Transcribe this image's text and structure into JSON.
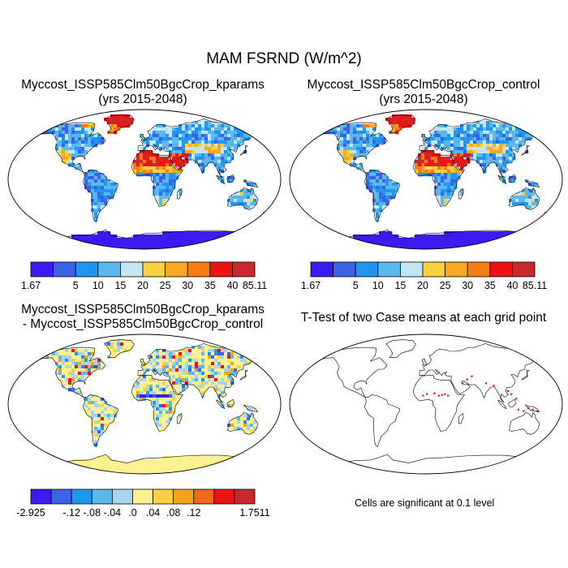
{
  "title": "MAM FSRND (W/m^2)",
  "panels": [
    {
      "id": "kparams",
      "title_lines": [
        "Myccost_ISSP585Clm50BgcCrop_kparams",
        "(yrs 2015-2048)"
      ],
      "colorbar": {
        "colors": [
          "#3a1cf2",
          "#3b63e8",
          "#2196f0",
          "#5ab8ec",
          "#c2e6f3",
          "#fbd13d",
          "#fca821",
          "#f77c14",
          "#ee1212",
          "#c9282d"
        ],
        "labels": [
          "1.67",
          "5",
          "10",
          "15",
          "20",
          "25",
          "30",
          "35",
          "40",
          "85.11"
        ]
      }
    },
    {
      "id": "control",
      "title_lines": [
        "Myccost_ISSP585Clm50BgcCrop_control",
        "(yrs 2015-2048)"
      ],
      "colorbar": {
        "colors": [
          "#3a1cf2",
          "#3b63e8",
          "#2196f0",
          "#5ab8ec",
          "#c2e6f3",
          "#fbd13d",
          "#fca821",
          "#f77c14",
          "#ee1212",
          "#c9282d"
        ],
        "labels": [
          "1.67",
          "5",
          "10",
          "15",
          "20",
          "25",
          "30",
          "35",
          "40",
          "85.11"
        ]
      }
    },
    {
      "id": "difference",
      "title_lines": [
        "Myccost_ISSP585Clm50BgcCrop_kparams",
        "- Myccost_ISSP585Clm50BgcCrop_control"
      ],
      "colorbar": {
        "colors": [
          "#3a1cf2",
          "#3b63e8",
          "#2196f0",
          "#5ab8ec",
          "#a7d5ee",
          "#fdf08f",
          "#fbd13d",
          "#f7a21f",
          "#f2671a",
          "#ee1212",
          "#c9282d"
        ],
        "labels": [
          "-2.925",
          "-.12",
          "-.08",
          "-.04",
          ".0",
          ".04",
          ".08",
          ".12",
          "1.7511"
        ]
      }
    },
    {
      "id": "ttest",
      "title_lines": [
        "T-Test of two Case means at each grid point"
      ],
      "note": "Cells are significant at 0.1 level"
    }
  ],
  "chart_data": [
    {
      "type": "heatmap",
      "title": "Myccost_ISSP585Clm50BgcCrop_kparams (yrs 2015-2048)",
      "units": "W/m^2",
      "range": [
        1.67,
        85.11
      ],
      "levels": [
        5,
        10,
        15,
        20,
        25,
        30,
        35,
        40
      ]
    },
    {
      "type": "heatmap",
      "title": "Myccost_ISSP585Clm50BgcCrop_control (yrs 2015-2048)",
      "units": "W/m^2",
      "range": [
        1.67,
        85.11
      ],
      "levels": [
        5,
        10,
        15,
        20,
        25,
        30,
        35,
        40
      ]
    },
    {
      "type": "heatmap",
      "title": "Myccost_ISSP585Clm50BgcCrop_kparams - Myccost_ISSP585Clm50BgcCrop_control",
      "units": "W/m^2",
      "range": [
        -2.925,
        1.7511
      ],
      "levels": [
        -0.12,
        -0.08,
        -0.04,
        0.0,
        0.04,
        0.08,
        0.12
      ]
    },
    {
      "type": "heatmap",
      "title": "T-Test of two Case means at each grid point",
      "significance_level": 0.1
    }
  ]
}
